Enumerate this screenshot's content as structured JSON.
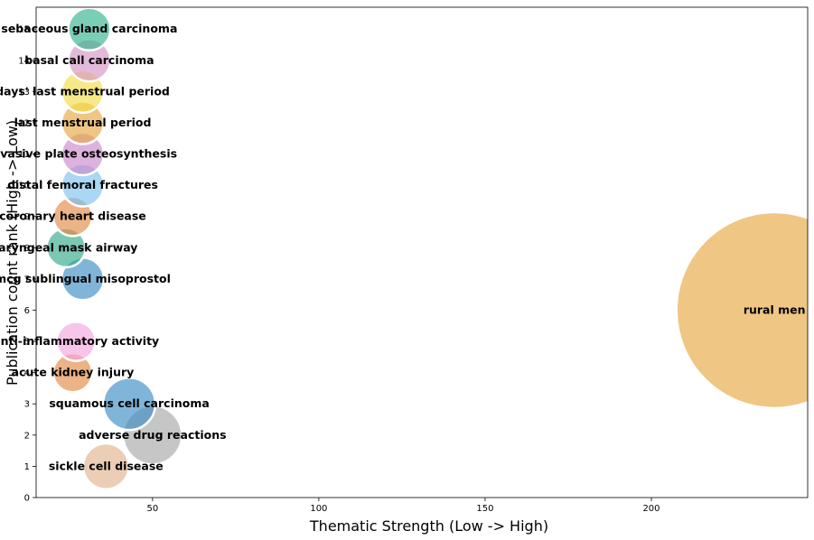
{
  "chart_data": {
    "type": "scatter",
    "xlabel": "Thematic Strength (Low -> High)",
    "ylabel": "Publication count rank (High -> Low)",
    "xlim": [
      15,
      247
    ],
    "ylim": [
      0,
      15.7
    ],
    "x_ticks": [
      50,
      100,
      150,
      200
    ],
    "y_ticks": [
      0,
      1,
      2,
      3,
      4,
      5,
      6,
      7,
      8,
      9,
      10,
      11,
      12,
      13,
      14,
      15
    ],
    "grid": false,
    "points": [
      {
        "label": "sickle cell disease",
        "x": 36,
        "y": 1,
        "size": 7,
        "color": "#e0b48e"
      },
      {
        "label": "adverse drug reactions",
        "x": 50,
        "y": 2,
        "size": 9,
        "color": "#a8a8a8"
      },
      {
        "label": "squamous cell carcinoma",
        "x": 43,
        "y": 3,
        "size": 8,
        "color": "#3d8cc4"
      },
      {
        "label": "acute kidney injury",
        "x": 26,
        "y": 4,
        "size": 6,
        "color": "#e08a45"
      },
      {
        "label": "anti-inflammatory activity",
        "x": 27,
        "y": 5,
        "size": 6,
        "color": "#f2a6dd"
      },
      {
        "label": "rural men",
        "x": 237,
        "y": 6,
        "size": 30,
        "color": "#e7a842"
      },
      {
        "label": "mcg sublingual misoprostol",
        "x": 29,
        "y": 7,
        "size": 6.5,
        "color": "#3d8cc4"
      },
      {
        "label": "laryngeal mask airway",
        "x": 24,
        "y": 8,
        "size": 6,
        "color": "#34a98a"
      },
      {
        "label": "coronary heart disease",
        "x": 26,
        "y": 9,
        "size": 6,
        "color": "#e08a45"
      },
      {
        "label": "distal femoral fractures",
        "x": 29,
        "y": 10,
        "size": 6.5,
        "color": "#7cc2ee"
      },
      {
        "label": "invasive plate osteosynthesis",
        "x": 29,
        "y": 11,
        "size": 6.5,
        "color": "#cc88cc"
      },
      {
        "label": "last menstrual period",
        "x": 29,
        "y": 12,
        "size": 6.5,
        "color": "#e7a842"
      },
      {
        "label": "days' last menstrual period",
        "x": 29,
        "y": 13,
        "size": 6.5,
        "color": "#f2dc48"
      },
      {
        "label": "basal call carcinoma",
        "x": 31,
        "y": 14,
        "size": 6.5,
        "color": "#d595c6"
      },
      {
        "label": "sebaceous gland carcinoma",
        "x": 31,
        "y": 15,
        "size": 6.5,
        "color": "#34b48f"
      }
    ]
  }
}
